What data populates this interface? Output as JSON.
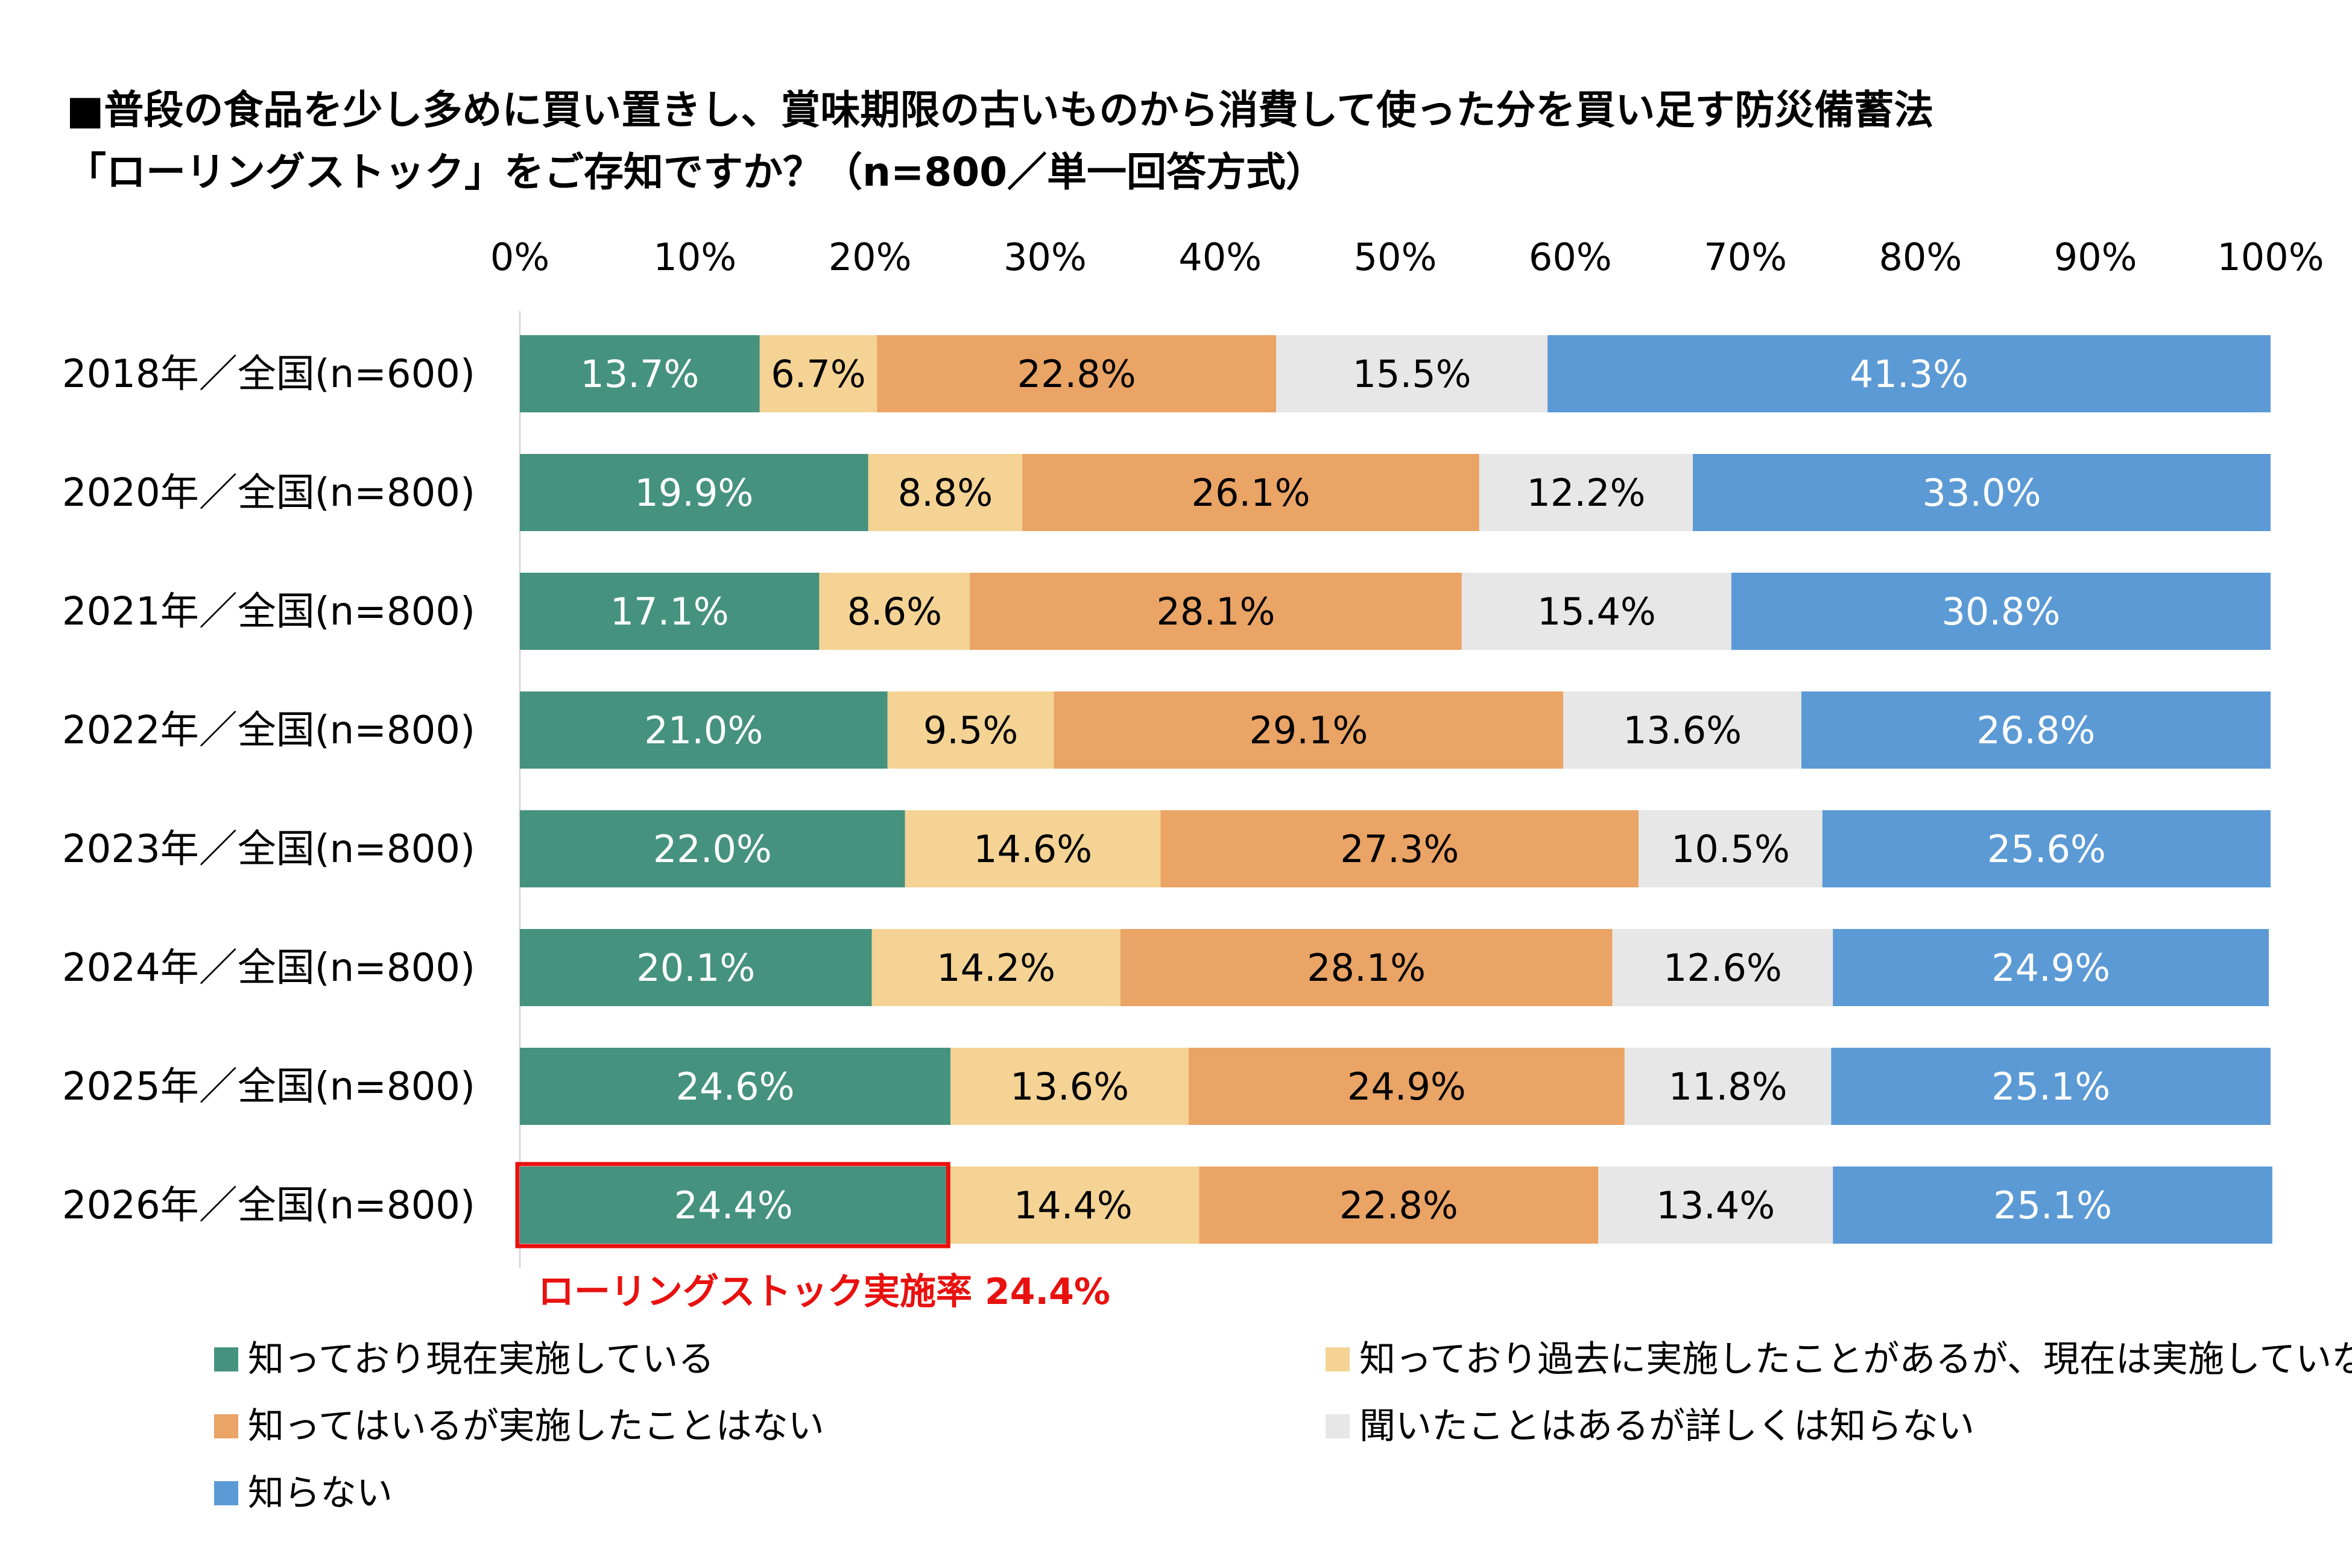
{
  "chart_data": {
    "type": "bar",
    "orientation": "horizontal",
    "stacked": true,
    "title": [
      "■普段の食品を少し多めに買い置きし、賞味期限の古いものから消費して使った分を買い足す防災備蓄法",
      "「ローリングストック」をご存知ですか？（n=800／単一回答方式）"
    ],
    "xlim": [
      0,
      100
    ],
    "x_ticks": [
      "0%",
      "10%",
      "20%",
      "30%",
      "40%",
      "50%",
      "60%",
      "70%",
      "80%",
      "90%",
      "100%"
    ],
    "categories": [
      "2018年／全国(n=600)",
      "2020年／全国(n=800)",
      "2021年／全国(n=800)",
      "2022年／全国(n=800)",
      "2023年／全国(n=800)",
      "2024年／全国(n=800)",
      "2025年／全国(n=800)",
      "2026年／全国(n=800)"
    ],
    "series": [
      {
        "name": "知っており現在実施している",
        "color": "#45927f",
        "label_color": "#ffffff",
        "values": [
          13.7,
          19.9,
          17.1,
          21.0,
          22.0,
          20.1,
          24.6,
          24.4
        ],
        "labels": [
          "13.7%",
          "19.9%",
          "17.1%",
          "21.0%",
          "22.0%",
          "20.1%",
          "24.6%",
          "24.4%"
        ]
      },
      {
        "name": "知っており過去に実施したことがあるが、現在は実施していない",
        "color": "#f4d394",
        "label_color": "#000000",
        "values": [
          6.7,
          8.8,
          8.6,
          9.5,
          14.6,
          14.2,
          13.6,
          14.4
        ],
        "labels": [
          "6.7%",
          "8.8%",
          "8.6%",
          "9.5%",
          "14.6%",
          "14.2%",
          "13.6%",
          "14.4%"
        ]
      },
      {
        "name": "知ってはいるが実施したことはない",
        "color": "#eaa466",
        "label_color": "#000000",
        "values": [
          22.8,
          26.1,
          28.1,
          29.1,
          27.3,
          28.1,
          24.9,
          22.8
        ],
        "labels": [
          "22.8%",
          "26.1%",
          "28.1%",
          "29.1%",
          "27.3%",
          "28.1%",
          "24.9%",
          "22.8%"
        ]
      },
      {
        "name": "聞いたことはあるが詳しくは知らない",
        "color": "#e7e7e7",
        "label_color": "#000000",
        "values": [
          15.5,
          12.2,
          15.4,
          13.6,
          10.5,
          12.6,
          11.8,
          13.4
        ],
        "labels": [
          "15.5%",
          "12.2%",
          "15.4%",
          "13.6%",
          "10.5%",
          "12.6%",
          "11.8%",
          "13.4%"
        ]
      },
      {
        "name": "知らない",
        "color": "#5b9ad5",
        "label_color": "#ffffff",
        "values": [
          41.3,
          33.0,
          30.8,
          26.8,
          25.6,
          24.9,
          25.1,
          25.1
        ],
        "labels": [
          "41.3%",
          "33.0%",
          "30.8%",
          "26.8%",
          "25.6%",
          "24.9%",
          "25.1%",
          "25.1%"
        ]
      }
    ],
    "highlight": {
      "category_index": 7,
      "series_index": 0,
      "outline_color": "#e8110f",
      "annotation": "ローリングストック実施率 24.4%"
    },
    "grid": false,
    "legend_position": "bottom"
  }
}
